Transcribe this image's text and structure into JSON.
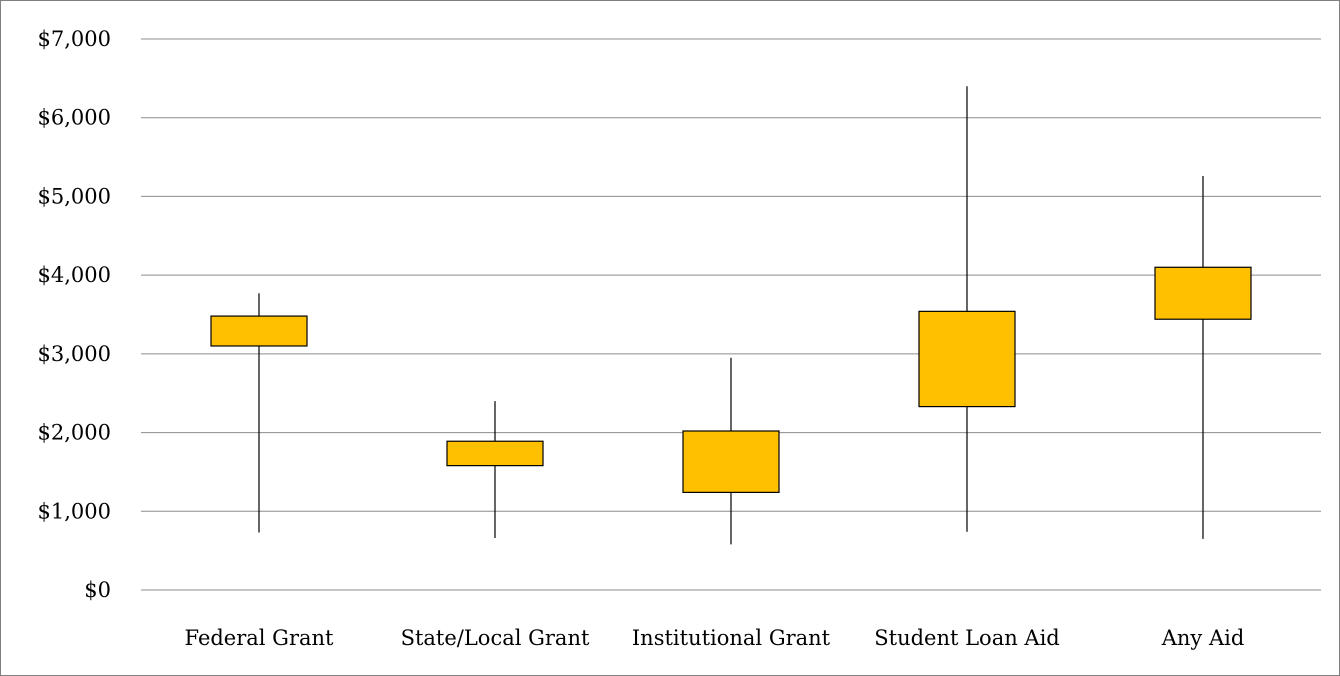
{
  "chart_data": {
    "type": "box",
    "title": "",
    "xlabel": "",
    "ylabel": "",
    "ylim": [
      0,
      7000
    ],
    "ytick_step": 1000,
    "ytick_labels": [
      "$0",
      "$1,000",
      "$2,000",
      "$3,000",
      "$4,000",
      "$5,000",
      "$6,000",
      "$7,000"
    ],
    "grid": true,
    "legend": "none",
    "box_color": "#FFC000",
    "box_edge_color": "#000000",
    "gridline_color": "#8c8c8c",
    "categories": [
      "Federal Grant",
      "State/Local Grant",
      "Institutional Grant",
      "Student Loan Aid",
      "Any Aid"
    ],
    "series": [
      {
        "min": 730,
        "q1": 3100,
        "q3": 3480,
        "max": 3770
      },
      {
        "min": 660,
        "q1": 1580,
        "q3": 1890,
        "max": 2400
      },
      {
        "min": 580,
        "q1": 1240,
        "q3": 2020,
        "max": 2950
      },
      {
        "min": 740,
        "q1": 2330,
        "q3": 3540,
        "max": 6400
      },
      {
        "min": 650,
        "q1": 3440,
        "q3": 4100,
        "max": 5260
      }
    ]
  }
}
